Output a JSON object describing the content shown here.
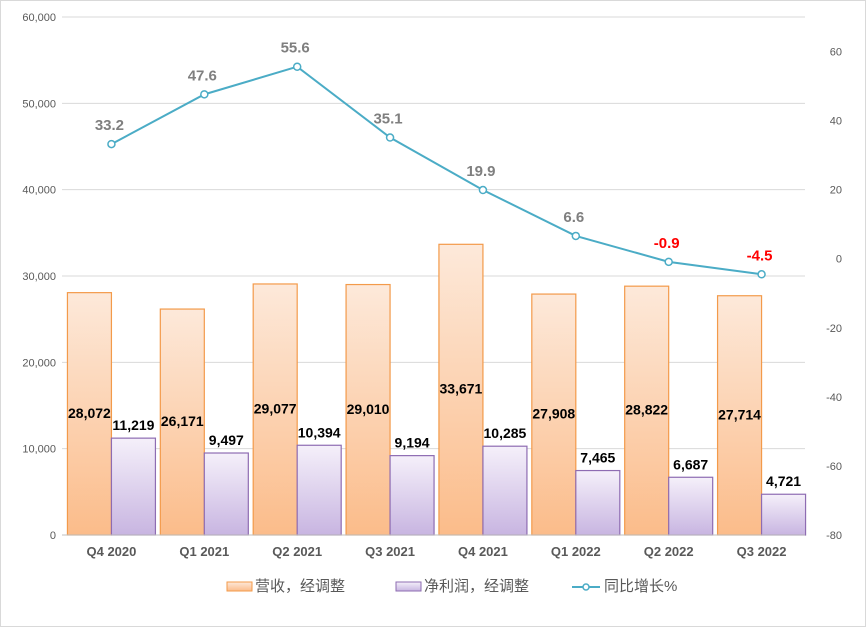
{
  "chart_data": {
    "type": "bar+line",
    "categories": [
      "Q4 2020",
      "Q1 2021",
      "Q2 2021",
      "Q3 2021",
      "Q4 2021",
      "Q1 2022",
      "Q2 2022",
      "Q3 2022"
    ],
    "series": [
      {
        "name": "营收，经调整",
        "type": "bar",
        "axis": "left",
        "values": [
          28072,
          26171,
          29077,
          29010,
          33671,
          27908,
          28822,
          27714
        ],
        "labels": [
          "28,072",
          "26,171",
          "29,077",
          "29,010",
          "33,671",
          "27,908",
          "28,822",
          "27,714"
        ],
        "color": "#f79646"
      },
      {
        "name": "净利润，经调整",
        "type": "bar",
        "axis": "left",
        "values": [
          11219,
          9497,
          10394,
          9194,
          10285,
          7465,
          6687,
          4721
        ],
        "labels": [
          "11,219",
          "9,497",
          "10,394",
          "9,194",
          "10,285",
          "7,465",
          "6,687",
          "4,721"
        ],
        "color": "#8064a2"
      },
      {
        "name": "同比增长%",
        "type": "line",
        "axis": "right",
        "values": [
          33.2,
          47.6,
          55.6,
          35.1,
          19.9,
          6.6,
          -0.9,
          -4.5
        ],
        "labels": [
          "33.2",
          "47.6",
          "55.6",
          "35.1",
          "19.9",
          "6.6",
          "-0.9",
          "-4.5"
        ],
        "color": "#4bacc6"
      }
    ],
    "left_axis": {
      "range": [
        0,
        60000
      ],
      "ticks": [
        "0",
        "10,000",
        "20,000",
        "30,000",
        "40,000",
        "50,000",
        "60,000"
      ]
    },
    "right_axis": {
      "range": [
        -80,
        70
      ],
      "ticks": [
        "-80",
        "-60",
        "-40",
        "-20",
        "0",
        "20",
        "40",
        "60"
      ]
    },
    "grid": true,
    "legend": "bottom",
    "negative_label_color": "#ff0000"
  }
}
